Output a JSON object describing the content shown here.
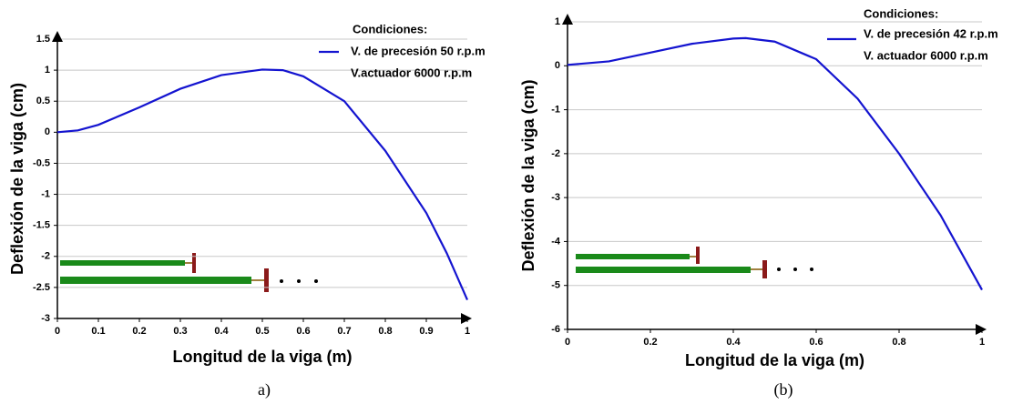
{
  "chart_data": [
    {
      "type": "line",
      "caption": "a)",
      "x_label": "Longitud de la viga (m)",
      "y_label": "Deflexión de la viga (cm)",
      "legend_title": "Condiciones:",
      "annotation": "V.actuador 6000 r.p.m",
      "x": [
        0,
        0.05,
        0.1,
        0.2,
        0.3,
        0.4,
        0.5,
        0.55,
        0.6,
        0.7,
        0.8,
        0.9,
        0.95,
        1
      ],
      "series": [
        {
          "name": "V. de precesión 50 r.p.m",
          "color": "#1414d0",
          "values": [
            0,
            0.03,
            0.12,
            0.4,
            0.7,
            0.92,
            1.01,
            1.0,
            0.9,
            0.5,
            -0.3,
            -1.3,
            -1.95,
            -2.7
          ]
        }
      ],
      "xlim": [
        0,
        1
      ],
      "xticks": [
        0,
        0.1,
        0.2,
        0.3,
        0.4,
        0.5,
        0.6,
        0.7,
        0.8,
        0.9,
        1
      ],
      "ylim": [
        -3,
        1.5
      ],
      "yticks": [
        1.5,
        1,
        0.5,
        0,
        -0.5,
        -1,
        -1.5,
        -2,
        -2.5,
        -3
      ],
      "grid": true
    },
    {
      "type": "line",
      "caption": "(b)",
      "x_label": "Longitud de la viga (m)",
      "y_label": "Deflexión de la viga (cm)",
      "legend_title": "Condiciones:",
      "annotation": "V. actuador 6000 r.p.m",
      "x": [
        0,
        0.1,
        0.2,
        0.3,
        0.4,
        0.43,
        0.5,
        0.6,
        0.7,
        0.8,
        0.9,
        1
      ],
      "series": [
        {
          "name": "V. de precesión 42 r.p.m",
          "color": "#1414d0",
          "values": [
            0.02,
            0.1,
            0.3,
            0.5,
            0.62,
            0.63,
            0.55,
            0.15,
            -0.75,
            -2.0,
            -3.4,
            -5.1
          ]
        }
      ],
      "xlim": [
        0,
        1
      ],
      "xticks": [
        0,
        0.2,
        0.4,
        0.6,
        0.8,
        1
      ],
      "ylim": [
        -6,
        1
      ],
      "yticks": [
        1,
        0,
        -1,
        -2,
        -3,
        -4,
        -5,
        -6
      ],
      "grid": true
    }
  ]
}
